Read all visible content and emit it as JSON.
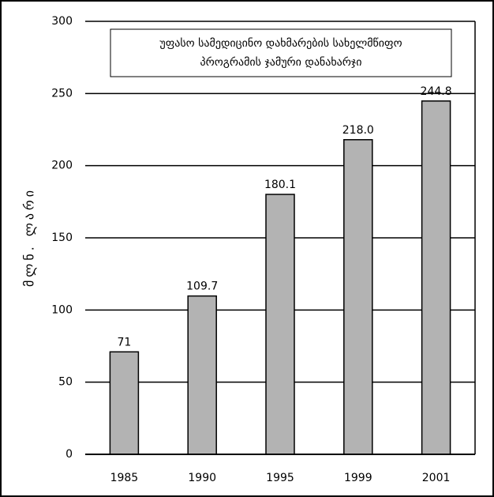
{
  "chart_data": {
    "type": "bar",
    "title": [
      "უფასო სამედიცინო დახმარების სახელმწიფო",
      "პროგრამის ჯამური დანახარჯი"
    ],
    "y_label": "მლნ. ლარი",
    "categories": [
      "1985",
      "1990",
      "1995",
      "1999",
      "2001"
    ],
    "values": [
      71,
      109.7,
      180.1,
      218.0,
      244.8
    ],
    "value_labels": [
      "71",
      "109.7",
      "180.1",
      "218.0",
      "244.8"
    ],
    "color": "#b3b3b3",
    "ylim": [
      0,
      300
    ],
    "yticks": [
      0,
      50,
      100,
      150,
      200,
      250,
      300
    ],
    "grid": true
  }
}
